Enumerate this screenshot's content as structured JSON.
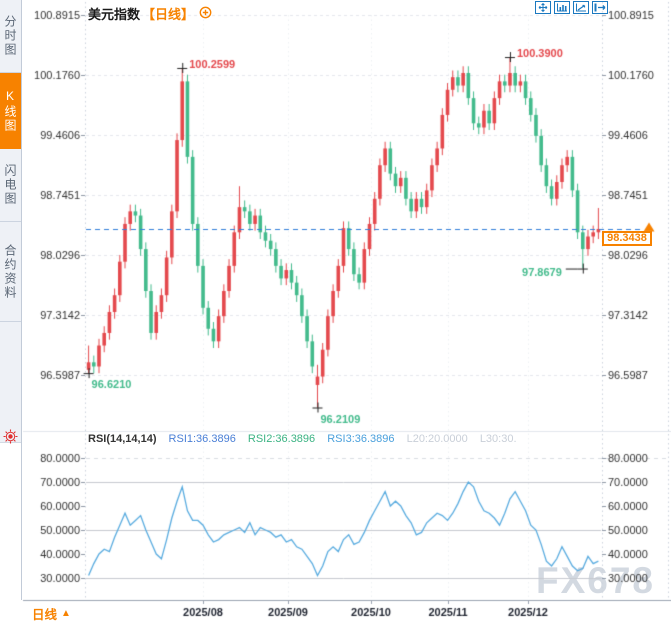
{
  "app": {
    "watermark": "FX678"
  },
  "header": {
    "title": "美元指数",
    "period_tag": "【日线】"
  },
  "sidebar": {
    "tabs": [
      {
        "label": "分时图",
        "active": false
      },
      {
        "label": "K线图",
        "active": true
      },
      {
        "label": "闪电图",
        "active": false
      },
      {
        "label": "合约资料",
        "active": false
      }
    ]
  },
  "toolbar": {
    "icons": [
      "pan-tool",
      "axis-scale",
      "chart-zoom",
      "collapse-right"
    ]
  },
  "price_box": {
    "value": "98.3438"
  },
  "bottom": {
    "period": "日线",
    "period_icon": "▲"
  },
  "colors": {
    "accent_orange": "#f78200",
    "up_red": "#e4494d",
    "down_green": "#43bb8c",
    "current_line_blue": "#2f7dd9",
    "rsi_line": "#58abdf",
    "axis_text": "#333333",
    "x_label_text": "#1f2430",
    "grid_dashed": "#e4e7ed",
    "grid_solid": "#c6c9cf",
    "border_dotted": "#ccd3dc",
    "axis_line": "#9aa3b0",
    "tick": "#8f98a6",
    "marker_cross": "#222222",
    "toolbar_blue": "#1b79c0",
    "settings_red": "#e03030",
    "muted": "#c9cfd8"
  },
  "chart_data": [
    {
      "type": "candlestick",
      "title": "美元指数 日线",
      "y_tick_labels": [
        "100.8915",
        "100.1760",
        "99.4606",
        "98.7451",
        "98.0296",
        "97.3142",
        "96.5987"
      ],
      "y_tick_values": [
        100.8915,
        100.176,
        99.4606,
        98.7451,
        98.0296,
        97.3142,
        96.5987
      ],
      "x_tick_labels": [
        "2025/08",
        "2025/09",
        "2025/10",
        "2025/11",
        "2025/12"
      ],
      "x_tick_pos": [
        0.228,
        0.392,
        0.553,
        0.703,
        0.858
      ],
      "current_price": 98.3438,
      "annotations": [
        {
          "text": "100.2599",
          "index": 18,
          "price": 100.2599,
          "kind": "high"
        },
        {
          "text": "100.3900",
          "index": 81,
          "price": 100.39,
          "kind": "high"
        },
        {
          "text": "96.6210",
          "index": 0,
          "price": 96.621,
          "kind": "low"
        },
        {
          "text": "96.2109",
          "index": 44,
          "price": 96.2109,
          "kind": "low"
        },
        {
          "text": "97.8679",
          "index": 95,
          "price": 97.8679,
          "kind": "low-left"
        }
      ],
      "candles": [
        [
          96.66,
          96.95,
          96.62,
          96.75
        ],
        [
          96.75,
          96.83,
          96.62,
          96.7
        ],
        [
          96.7,
          97.03,
          96.62,
          96.95
        ],
        [
          96.95,
          97.18,
          96.87,
          97.1
        ],
        [
          97.1,
          97.43,
          97.02,
          97.35
        ],
        [
          97.35,
          97.63,
          97.27,
          97.55
        ],
        [
          97.55,
          98.03,
          97.47,
          97.95
        ],
        [
          97.95,
          98.48,
          97.87,
          98.4
        ],
        [
          98.4,
          98.63,
          98.32,
          98.55
        ],
        [
          98.55,
          98.63,
          98.42,
          98.5
        ],
        [
          98.5,
          98.58,
          98.02,
          98.1
        ],
        [
          98.1,
          98.18,
          97.52,
          97.6
        ],
        [
          97.6,
          97.68,
          97.02,
          97.1
        ],
        [
          97.1,
          97.43,
          97.02,
          97.35
        ],
        [
          97.35,
          97.63,
          97.27,
          97.55
        ],
        [
          97.55,
          98.08,
          97.47,
          98.0
        ],
        [
          98.0,
          98.63,
          97.92,
          98.55
        ],
        [
          98.55,
          99.48,
          98.47,
          99.4
        ],
        [
          99.4,
          100.26,
          99.32,
          100.1
        ],
        [
          100.1,
          100.18,
          99.12,
          99.2
        ],
        [
          99.2,
          99.28,
          98.32,
          98.4
        ],
        [
          98.4,
          98.48,
          97.82,
          97.9
        ],
        [
          97.9,
          97.98,
          97.32,
          97.4
        ],
        [
          97.4,
          97.48,
          97.07,
          97.15
        ],
        [
          97.15,
          97.23,
          96.92,
          97.0
        ],
        [
          97.0,
          97.38,
          96.92,
          97.3
        ],
        [
          97.3,
          97.68,
          97.22,
          97.6
        ],
        [
          97.6,
          97.98,
          97.52,
          97.9
        ],
        [
          97.9,
          98.38,
          97.82,
          98.3
        ],
        [
          98.3,
          98.85,
          98.22,
          98.6
        ],
        [
          98.6,
          98.68,
          98.47,
          98.55
        ],
        [
          98.55,
          98.63,
          98.32,
          98.4
        ],
        [
          98.4,
          98.58,
          98.32,
          98.5
        ],
        [
          98.5,
          98.58,
          98.22,
          98.3
        ],
        [
          98.3,
          98.38,
          98.12,
          98.2
        ],
        [
          98.2,
          98.28,
          98.02,
          98.1
        ],
        [
          98.1,
          98.18,
          97.82,
          97.9
        ],
        [
          97.9,
          97.98,
          97.67,
          97.75
        ],
        [
          97.75,
          97.93,
          97.67,
          97.85
        ],
        [
          97.85,
          97.93,
          97.62,
          97.7
        ],
        [
          97.7,
          97.78,
          97.47,
          97.55
        ],
        [
          97.55,
          97.63,
          97.22,
          97.3
        ],
        [
          97.3,
          97.38,
          96.92,
          97.0
        ],
        [
          97.0,
          97.08,
          96.62,
          96.7
        ],
        [
          96.48,
          96.72,
          96.21,
          96.58
        ],
        [
          96.58,
          96.98,
          96.5,
          96.9
        ],
        [
          96.9,
          97.38,
          96.82,
          97.3
        ],
        [
          97.3,
          97.68,
          97.22,
          97.6
        ],
        [
          97.6,
          97.98,
          97.52,
          97.9
        ],
        [
          97.9,
          98.43,
          97.82,
          98.35
        ],
        [
          98.35,
          98.43,
          98.02,
          98.1
        ],
        [
          98.1,
          98.18,
          97.72,
          97.8
        ],
        [
          97.8,
          97.88,
          97.62,
          97.7
        ],
        [
          97.7,
          98.18,
          97.62,
          98.1
        ],
        [
          98.1,
          98.48,
          98.02,
          98.4
        ],
        [
          98.4,
          98.78,
          98.32,
          98.7
        ],
        [
          98.7,
          99.18,
          98.62,
          99.1
        ],
        [
          99.1,
          99.38,
          99.02,
          99.3
        ],
        [
          99.3,
          99.38,
          98.92,
          99.0
        ],
        [
          99.0,
          99.08,
          98.77,
          98.85
        ],
        [
          98.85,
          99.03,
          98.77,
          98.95
        ],
        [
          98.95,
          99.03,
          98.62,
          98.7
        ],
        [
          98.7,
          98.78,
          98.47,
          98.55
        ],
        [
          98.55,
          98.78,
          98.47,
          98.7
        ],
        [
          98.7,
          98.78,
          98.52,
          98.6
        ],
        [
          98.6,
          98.88,
          98.52,
          98.8
        ],
        [
          98.8,
          99.18,
          98.72,
          99.1
        ],
        [
          99.1,
          99.38,
          99.02,
          99.3
        ],
        [
          99.3,
          99.78,
          99.22,
          99.7
        ],
        [
          99.7,
          100.08,
          99.62,
          100.0
        ],
        [
          100.0,
          100.23,
          99.92,
          100.15
        ],
        [
          100.15,
          100.23,
          99.97,
          100.05
        ],
        [
          100.05,
          100.28,
          99.97,
          100.2
        ],
        [
          100.2,
          100.28,
          99.82,
          99.9
        ],
        [
          99.9,
          99.98,
          99.52,
          99.6
        ],
        [
          99.6,
          99.68,
          99.47,
          99.55
        ],
        [
          99.55,
          99.83,
          99.47,
          99.75
        ],
        [
          99.75,
          99.83,
          99.52,
          99.6
        ],
        [
          99.6,
          99.98,
          99.52,
          99.9
        ],
        [
          99.9,
          100.18,
          99.82,
          100.1
        ],
        [
          100.1,
          100.18,
          99.97,
          100.05
        ],
        [
          100.05,
          100.39,
          99.97,
          100.2
        ],
        [
          100.2,
          100.28,
          99.97,
          100.05
        ],
        [
          100.05,
          100.18,
          99.97,
          100.1
        ],
        [
          100.1,
          100.18,
          99.82,
          99.9
        ],
        [
          99.9,
          99.98,
          99.62,
          99.7
        ],
        [
          99.7,
          99.78,
          99.37,
          99.45
        ],
        [
          99.45,
          99.53,
          99.02,
          99.1
        ],
        [
          99.1,
          99.18,
          98.77,
          98.85
        ],
        [
          98.85,
          98.93,
          98.62,
          98.7
        ],
        [
          98.7,
          98.98,
          98.62,
          98.9
        ],
        [
          98.9,
          99.18,
          98.82,
          99.1
        ],
        [
          99.1,
          99.28,
          99.02,
          99.2
        ],
        [
          99.2,
          99.28,
          98.72,
          98.8
        ],
        [
          98.8,
          98.88,
          98.22,
          98.3
        ],
        [
          98.3,
          98.38,
          97.87,
          98.1
        ],
        [
          98.1,
          98.33,
          98.02,
          98.25
        ],
        [
          98.25,
          98.38,
          98.17,
          98.3
        ],
        [
          98.3,
          98.59,
          98.22,
          98.34
        ]
      ]
    },
    {
      "type": "line",
      "name": "RSI",
      "legend": [
        {
          "text": "RSI(14,14,14)",
          "color": "#333333"
        },
        {
          "text": "RSI1:36.3896",
          "color": "#4a7fd6"
        },
        {
          "text": "RSI2:36.3896",
          "color": "#3bb383"
        },
        {
          "text": "RSI3:36.3896",
          "color": "#4aa0dc"
        },
        {
          "text": "L20:20.0000",
          "color": "#c9cfd8"
        },
        {
          "text": "L30:30.",
          "color": "#c9cfd8"
        }
      ],
      "y_tick_labels": [
        "80.0000",
        "70.0000",
        "60.0000",
        "50.0000",
        "40.0000",
        "30.0000"
      ],
      "y_tick_values": [
        80,
        70,
        60,
        50,
        40,
        30
      ],
      "solid_levels": [
        70,
        50,
        30
      ],
      "dashed_levels": [
        80
      ],
      "values": [
        31,
        36,
        40,
        42,
        41,
        47,
        52,
        57,
        52,
        54,
        56,
        50,
        45,
        40,
        38,
        46,
        55,
        62,
        68,
        58,
        54,
        54,
        52,
        48,
        45,
        46,
        48,
        49,
        50,
        51,
        49,
        53,
        48,
        51,
        50,
        49,
        47,
        48,
        45,
        46,
        43,
        42,
        39,
        36,
        31,
        35,
        41,
        43,
        41,
        46,
        48,
        44,
        45,
        49,
        54,
        58,
        62,
        66,
        60,
        62,
        60,
        56,
        53,
        48,
        49,
        53,
        55,
        57,
        56,
        54,
        57,
        61,
        66,
        70,
        68,
        62,
        58,
        57,
        55,
        52,
        57,
        63,
        66,
        62,
        58,
        52,
        50,
        44,
        37,
        35,
        38,
        43,
        39,
        35,
        33,
        34,
        39,
        36,
        37
      ]
    }
  ]
}
